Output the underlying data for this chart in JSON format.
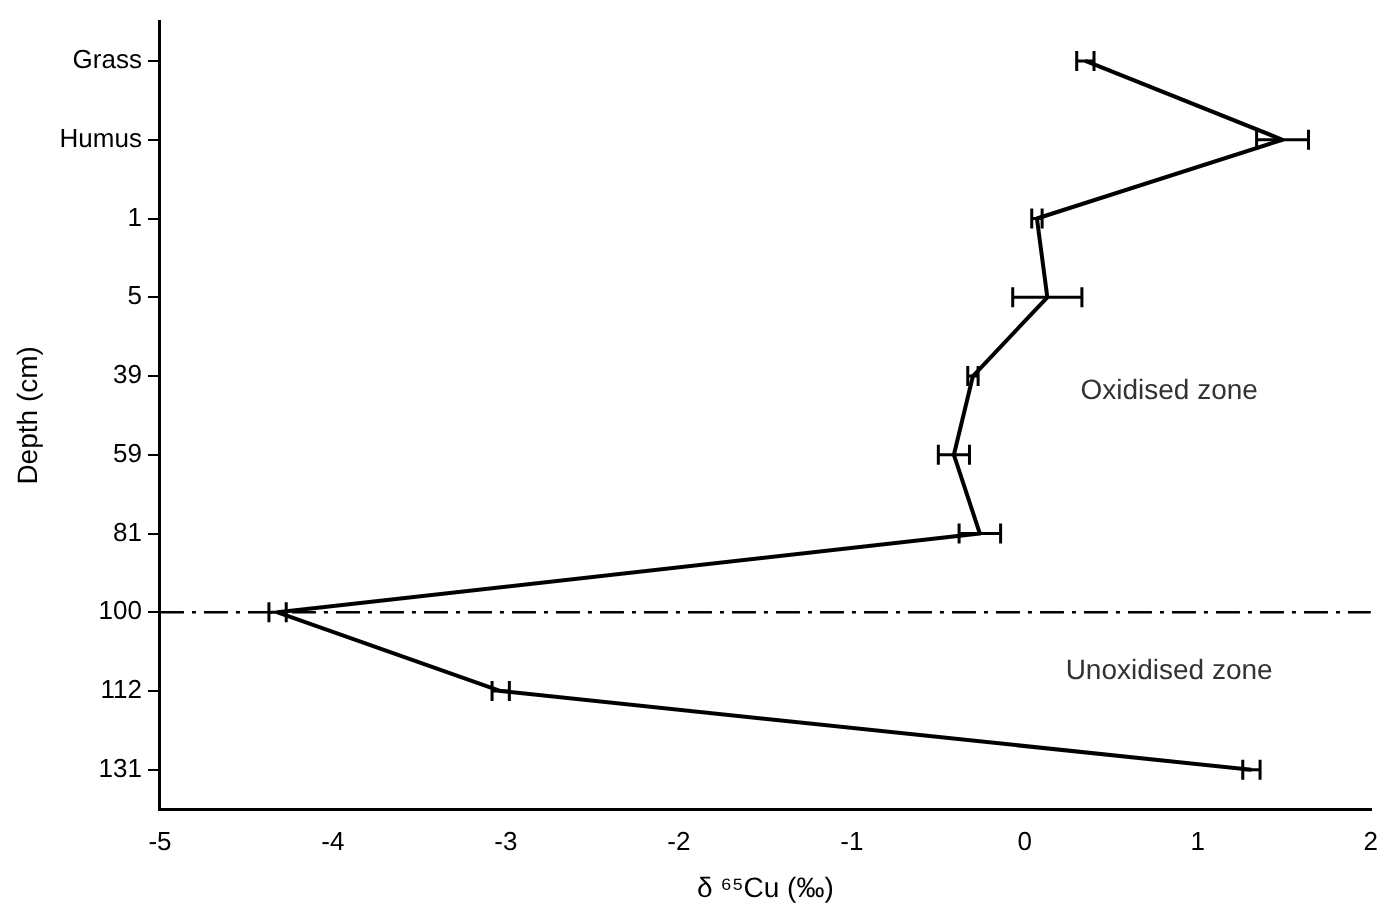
{
  "chart_data": {
    "type": "line",
    "orientation": "horizontal",
    "ylabel": "Depth (cm)",
    "xlabel": "δ ⁶⁵Cu (‰)",
    "categories": [
      "Grass",
      "Humus",
      "1",
      "5",
      "39",
      "59",
      "81",
      "100",
      "112",
      "131"
    ],
    "series": [
      {
        "color": "#000000",
        "values": [
          0.35,
          1.49,
          0.07,
          0.13,
          -0.3,
          -0.41,
          -0.26,
          -4.32,
          -3.03,
          1.31
        ],
        "errors": [
          0.05,
          0.15,
          0.03,
          0.2,
          0.03,
          0.09,
          0.12,
          0.05,
          0.05,
          0.05
        ]
      }
    ],
    "xlim": [
      -5,
      2
    ],
    "xticks": [
      -5,
      -4,
      -3,
      -2,
      -1,
      0,
      1,
      2
    ],
    "grid": false,
    "legend": false,
    "ref_lines": [
      {
        "axis": "y",
        "value": "100",
        "color": "#000000",
        "line_style": "dashed"
      }
    ],
    "annotations": [
      "Oxidised zone",
      "Unoxidised zone"
    ]
  }
}
